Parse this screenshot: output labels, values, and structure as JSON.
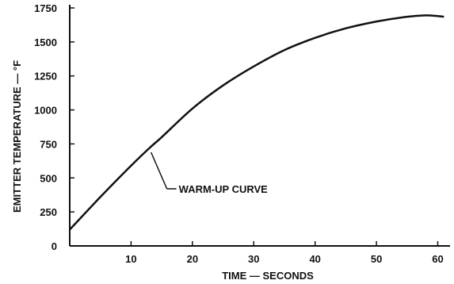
{
  "chart_data": {
    "type": "line",
    "title": "",
    "xlabel": "TIME — SECONDS",
    "ylabel": "EMITTER TEMPERATURE — °F",
    "xlim": [
      0,
      62
    ],
    "ylim": [
      0,
      1750
    ],
    "x_ticks": [
      10,
      20,
      30,
      40,
      50,
      60
    ],
    "y_ticks": [
      0,
      250,
      500,
      750,
      1000,
      1250,
      1500,
      1750
    ],
    "x_tick_labels": [
      "10",
      "20",
      "30",
      "40",
      "50",
      "60"
    ],
    "y_tick_labels": [
      "0",
      "250",
      "500",
      "750",
      "1000",
      "1250",
      "1500",
      "1750"
    ],
    "grid": false,
    "series": [
      {
        "name": "WARM-UP CURVE",
        "x": [
          0,
          5,
          10,
          13,
          15,
          20,
          25,
          30,
          35,
          40,
          45,
          50,
          55,
          58,
          60,
          61
        ],
        "y": [
          120,
          360,
          590,
          720,
          800,
          1010,
          1180,
          1320,
          1440,
          1530,
          1600,
          1650,
          1685,
          1695,
          1690,
          1685
        ]
      }
    ],
    "annotations": [
      {
        "text": "WARM-UP CURVE",
        "x": 13,
        "y": 700
      }
    ]
  }
}
